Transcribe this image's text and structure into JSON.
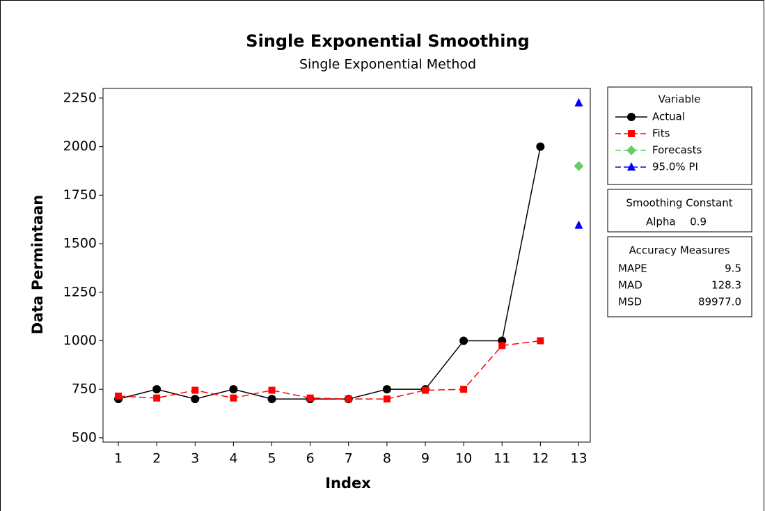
{
  "chart_data": {
    "type": "line",
    "title": "Single Exponential Smoothing",
    "subtitle": "Single Exponential Method",
    "x_label": "Index",
    "y_label": "Data Permintaan",
    "xlim": [
      0.6,
      13.3
    ],
    "xticks": [
      1,
      2,
      3,
      4,
      5,
      6,
      7,
      8,
      9,
      10,
      11,
      12,
      13
    ],
    "ylim": [
      478,
      2300
    ],
    "yticks": [
      500,
      750,
      1000,
      1250,
      1500,
      1750,
      2000,
      2250
    ],
    "legend_title": "Variable",
    "series": [
      {
        "name": "Actual",
        "color": "#000000",
        "marker": "circle",
        "dashed": false,
        "connect": true,
        "x": [
          1,
          2,
          3,
          4,
          5,
          6,
          7,
          8,
          9,
          10,
          11,
          12
        ],
        "values": [
          700,
          750,
          700,
          750,
          700,
          700,
          700,
          750,
          750,
          1000,
          1000,
          2000
        ]
      },
      {
        "name": "Fits",
        "color": "#ff0000",
        "marker": "square",
        "dashed": true,
        "connect": true,
        "x": [
          1,
          2,
          3,
          4,
          5,
          6,
          7,
          8,
          9,
          10,
          11,
          12
        ],
        "values": [
          715,
          705,
          745,
          705,
          745,
          705,
          700,
          700,
          745,
          750,
          975,
          1000
        ]
      },
      {
        "name": "Forecasts",
        "color": "#66cc66",
        "marker": "diamond",
        "dashed": true,
        "connect": false,
        "x": [
          13
        ],
        "values": [
          1900
        ]
      },
      {
        "name": "95.0% PI",
        "color": "#0000ff",
        "marker": "triangle",
        "dashed": true,
        "connect": false,
        "x": [
          13,
          13
        ],
        "values": [
          2225,
          1595
        ]
      }
    ],
    "smoothing_box": {
      "title": "Smoothing Constant",
      "rows": [
        [
          "Alpha",
          "0.9"
        ]
      ]
    },
    "accuracy_box": {
      "title": "Accuracy Measures",
      "rows": [
        [
          "MAPE",
          "9.5"
        ],
        [
          "MAD",
          "128.3"
        ],
        [
          "MSD",
          "89977.0"
        ]
      ]
    }
  }
}
